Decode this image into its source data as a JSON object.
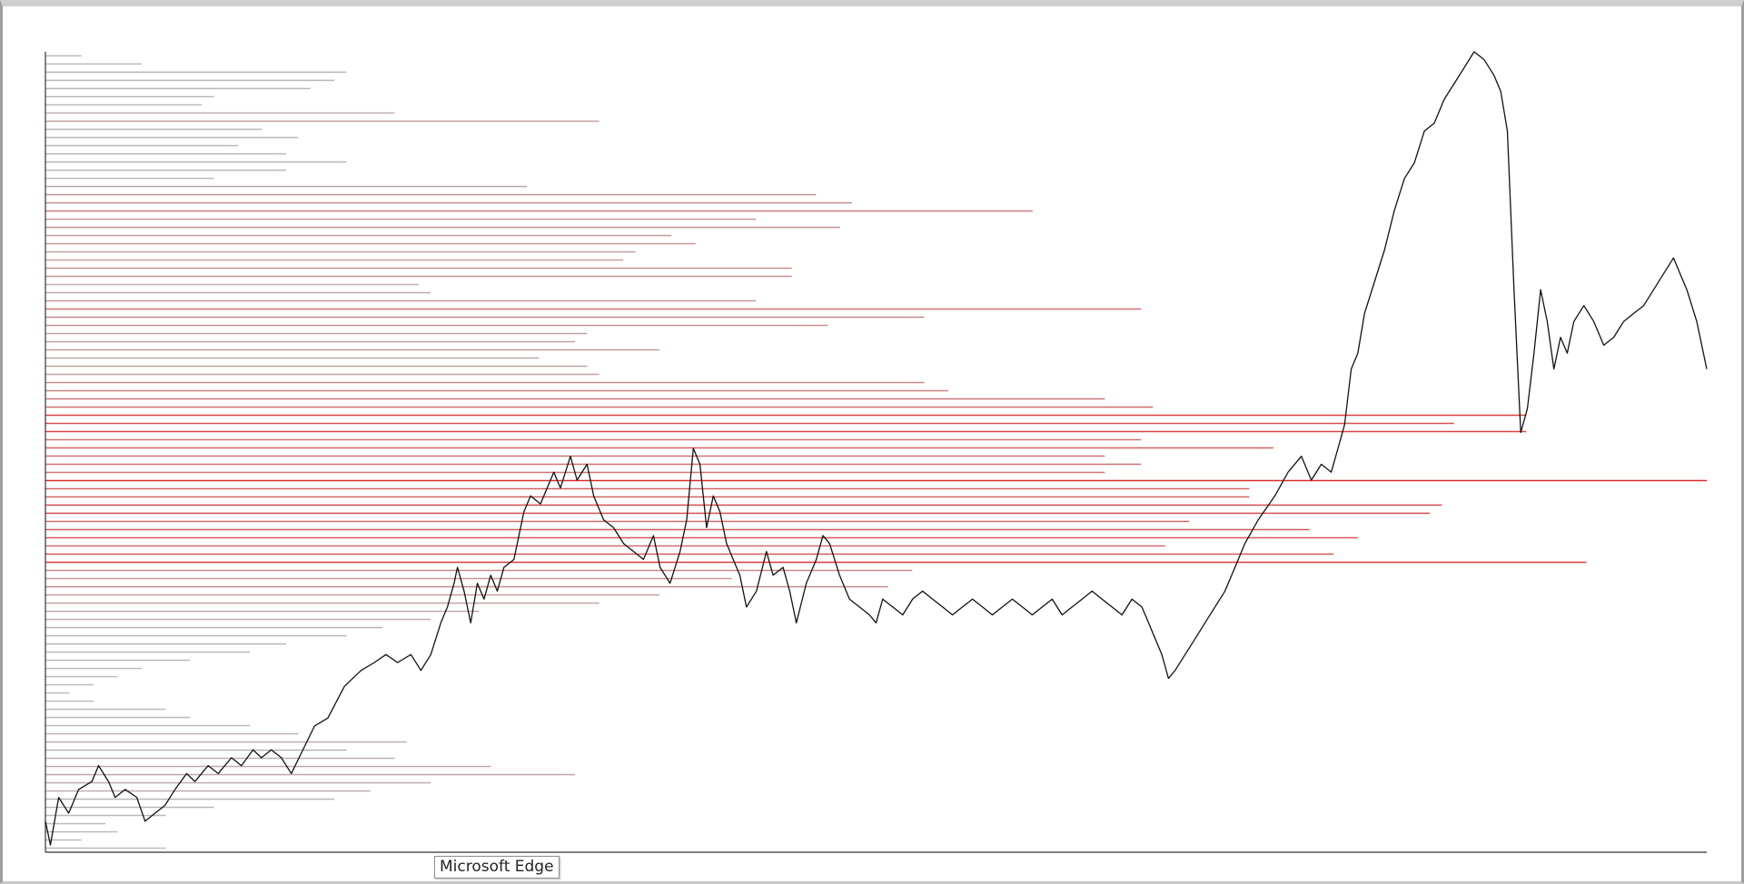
{
  "tooltip": {
    "text": "Microsoft Edge"
  },
  "colors": {
    "price_line": "#111111",
    "axis": "#333333",
    "profile_low": "#bbbbbb",
    "profile_high": "#dd2a2a",
    "background": "#ffffff"
  },
  "chart_data": {
    "type": "line",
    "title": "",
    "xlabel": "",
    "ylabel": "",
    "grid": false,
    "legend": "none",
    "xlim": [
      0,
      1000
    ],
    "ylim": [
      0,
      100
    ],
    "series": [
      {
        "values": [
          [
            0,
            3
          ],
          [
            3,
            0
          ],
          [
            8,
            6
          ],
          [
            14,
            4
          ],
          [
            20,
            7
          ],
          [
            28,
            8
          ],
          [
            32,
            10
          ],
          [
            38,
            8
          ],
          [
            42,
            6
          ],
          [
            48,
            7
          ],
          [
            55,
            6
          ],
          [
            60,
            3
          ],
          [
            66,
            4
          ],
          [
            72,
            5
          ],
          [
            78,
            7
          ],
          [
            85,
            9
          ],
          [
            90,
            8
          ],
          [
            98,
            10
          ],
          [
            104,
            9
          ],
          [
            112,
            11
          ],
          [
            118,
            10
          ],
          [
            125,
            12
          ],
          [
            130,
            11
          ],
          [
            136,
            12
          ],
          [
            142,
            11
          ],
          [
            148,
            9
          ],
          [
            155,
            12
          ],
          [
            162,
            15
          ],
          [
            170,
            16
          ],
          [
            180,
            20
          ],
          [
            190,
            22
          ],
          [
            198,
            23
          ],
          [
            205,
            24
          ],
          [
            212,
            23
          ],
          [
            220,
            24
          ],
          [
            226,
            22
          ],
          [
            232,
            24
          ],
          [
            238,
            28
          ],
          [
            242,
            30
          ],
          [
            246,
            33
          ],
          [
            248,
            35
          ],
          [
            252,
            32
          ],
          [
            256,
            28
          ],
          [
            260,
            33
          ],
          [
            264,
            31
          ],
          [
            268,
            34
          ],
          [
            272,
            32
          ],
          [
            276,
            35
          ],
          [
            282,
            36
          ],
          [
            288,
            42
          ],
          [
            292,
            44
          ],
          [
            298,
            43
          ],
          [
            306,
            47
          ],
          [
            310,
            45
          ],
          [
            316,
            49
          ],
          [
            320,
            46
          ],
          [
            326,
            48
          ],
          [
            330,
            44
          ],
          [
            336,
            41
          ],
          [
            342,
            40
          ],
          [
            348,
            38
          ],
          [
            354,
            37
          ],
          [
            360,
            36
          ],
          [
            366,
            39
          ],
          [
            370,
            35
          ],
          [
            376,
            33
          ],
          [
            382,
            37
          ],
          [
            386,
            41
          ],
          [
            390,
            50
          ],
          [
            394,
            48
          ],
          [
            398,
            40
          ],
          [
            402,
            44
          ],
          [
            406,
            42
          ],
          [
            410,
            38
          ],
          [
            414,
            36
          ],
          [
            418,
            34
          ],
          [
            422,
            30
          ],
          [
            428,
            32
          ],
          [
            434,
            37
          ],
          [
            438,
            34
          ],
          [
            444,
            35
          ],
          [
            448,
            32
          ],
          [
            452,
            28
          ],
          [
            458,
            33
          ],
          [
            464,
            36
          ],
          [
            468,
            39
          ],
          [
            472,
            38
          ],
          [
            478,
            34
          ],
          [
            484,
            31
          ],
          [
            490,
            30
          ],
          [
            496,
            29
          ],
          [
            500,
            28
          ],
          [
            504,
            31
          ],
          [
            510,
            30
          ],
          [
            516,
            29
          ],
          [
            522,
            31
          ],
          [
            528,
            32
          ],
          [
            534,
            31
          ],
          [
            540,
            30
          ],
          [
            546,
            29
          ],
          [
            552,
            30
          ],
          [
            558,
            31
          ],
          [
            564,
            30
          ],
          [
            570,
            29
          ],
          [
            576,
            30
          ],
          [
            582,
            31
          ],
          [
            588,
            30
          ],
          [
            594,
            29
          ],
          [
            600,
            30
          ],
          [
            606,
            31
          ],
          [
            612,
            29
          ],
          [
            618,
            30
          ],
          [
            624,
            31
          ],
          [
            630,
            32
          ],
          [
            636,
            31
          ],
          [
            642,
            30
          ],
          [
            648,
            29
          ],
          [
            654,
            31
          ],
          [
            660,
            30
          ],
          [
            664,
            28
          ],
          [
            668,
            26
          ],
          [
            672,
            24
          ],
          [
            676,
            21
          ],
          [
            680,
            22
          ],
          [
            686,
            24
          ],
          [
            692,
            26
          ],
          [
            698,
            28
          ],
          [
            704,
            30
          ],
          [
            710,
            32
          ],
          [
            716,
            35
          ],
          [
            722,
            38
          ],
          [
            730,
            41
          ],
          [
            740,
            44
          ],
          [
            748,
            47
          ],
          [
            756,
            49
          ],
          [
            762,
            46
          ],
          [
            768,
            48
          ],
          [
            774,
            47
          ],
          [
            778,
            50
          ],
          [
            782,
            53
          ],
          [
            786,
            60
          ],
          [
            790,
            62
          ],
          [
            794,
            67
          ],
          [
            800,
            71
          ],
          [
            806,
            75
          ],
          [
            812,
            80
          ],
          [
            818,
            84
          ],
          [
            824,
            86
          ],
          [
            830,
            90
          ],
          [
            836,
            91
          ],
          [
            842,
            94
          ],
          [
            848,
            96
          ],
          [
            854,
            98
          ],
          [
            860,
            100
          ],
          [
            866,
            99
          ],
          [
            872,
            97
          ],
          [
            876,
            95
          ],
          [
            880,
            90
          ],
          [
            884,
            70
          ],
          [
            888,
            52
          ],
          [
            892,
            55
          ],
          [
            896,
            62
          ],
          [
            900,
            70
          ],
          [
            904,
            66
          ],
          [
            908,
            60
          ],
          [
            912,
            64
          ],
          [
            916,
            62
          ],
          [
            920,
            66
          ],
          [
            926,
            68
          ],
          [
            932,
            66
          ],
          [
            938,
            63
          ],
          [
            944,
            64
          ],
          [
            950,
            66
          ],
          [
            956,
            67
          ],
          [
            962,
            68
          ],
          [
            968,
            70
          ],
          [
            974,
            72
          ],
          [
            980,
            74
          ],
          [
            984,
            72
          ],
          [
            988,
            70
          ],
          [
            994,
            66
          ],
          [
            1000,
            60
          ]
        ]
      }
    ],
    "volume_profile": [
      3,
      8,
      25,
      24,
      22,
      14,
      13,
      29,
      46,
      18,
      21,
      16,
      20,
      25,
      20,
      14,
      40,
      64,
      67,
      82,
      59,
      66,
      52,
      54,
      49,
      48,
      62,
      62,
      31,
      32,
      59,
      91,
      73,
      65,
      45,
      44,
      51,
      41,
      45,
      46,
      73,
      75,
      88,
      92,
      123,
      117,
      123,
      91,
      102,
      88,
      91,
      88,
      138,
      100,
      100,
      116,
      115,
      95,
      105,
      109,
      93,
      107,
      128,
      72,
      57,
      70,
      51,
      46,
      36,
      32,
      28,
      25,
      20,
      17,
      12,
      8,
      6,
      4,
      2,
      4,
      10,
      12,
      17,
      21,
      30,
      25,
      29,
      37,
      44,
      32,
      27,
      24,
      14,
      10,
      5,
      6,
      3,
      10
    ]
  }
}
